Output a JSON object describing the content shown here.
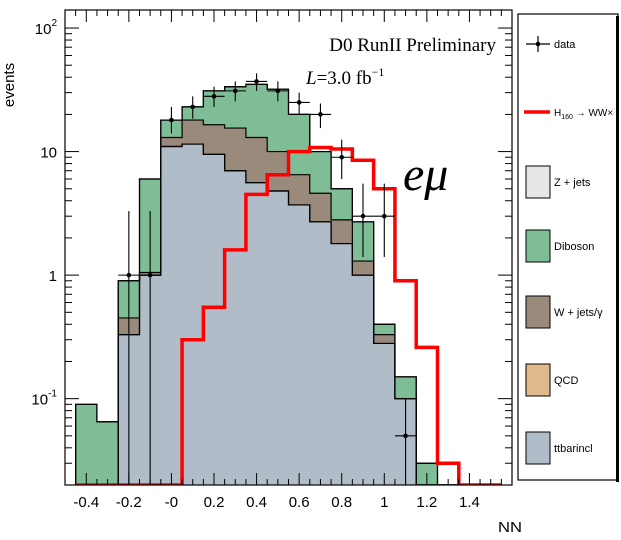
{
  "chart_data": {
    "type": "histogram",
    "title": "D0 RunII Preliminary",
    "luminosity": {
      "symbol": "L",
      "text": "=3.0 fb",
      "superscript": "−1"
    },
    "channel_label": "eμ",
    "xlabel": "NN",
    "ylabel": "events",
    "yscale": "log",
    "xlim": [
      -0.5,
      1.6
    ],
    "ylim": [
      0.02,
      140
    ],
    "grid": false,
    "legend_placement": "right-outside",
    "bin_edges": [
      -0.45,
      -0.35,
      -0.25,
      -0.15,
      -0.05,
      0.05,
      0.15,
      0.25,
      0.35,
      0.45,
      0.55,
      0.65,
      0.75,
      0.85,
      0.95,
      1.05,
      1.15,
      1.25,
      1.35,
      1.45,
      1.55
    ],
    "x_tick_values": [
      -0.4,
      -0.2,
      0,
      0.2,
      0.4,
      0.6,
      0.8,
      1,
      1.2,
      1.4
    ],
    "x_tick_labels": [
      "-0.4",
      "-0.2",
      "-0",
      "0.2",
      "0.4",
      "0.6",
      "0.8",
      "1",
      "1.2",
      "1.4"
    ],
    "y_ticks": [
      {
        "value": 0.1,
        "base": "10",
        "exp": "-1"
      },
      {
        "value": 1,
        "base": "1",
        "exp": ""
      },
      {
        "value": 10,
        "base": "10",
        "exp": ""
      },
      {
        "value": 100,
        "base": "10",
        "exp": "2"
      }
    ],
    "stack": [
      {
        "name": "ttbarincl",
        "color": "#b0bdc8",
        "values": [
          0,
          0,
          0.33,
          1.0,
          11,
          11.5,
          9.5,
          7,
          5.6,
          4.8,
          3.7,
          2.7,
          1.8,
          1.0,
          0.28,
          0.1,
          0,
          0,
          0,
          0
        ]
      },
      {
        "name": "QCD",
        "color": "#e0b98a",
        "values": [
          0,
          0,
          0.33,
          1.0,
          11,
          11.5,
          9.5,
          7,
          5.6,
          4.8,
          3.7,
          2.7,
          1.8,
          1.0,
          0.28,
          0.1,
          0,
          0,
          0,
          0
        ]
      },
      {
        "name": "W + jets/γ",
        "color": "#9a8a7c",
        "values": [
          0,
          0,
          0.45,
          1.05,
          13,
          18,
          16.5,
          15.5,
          13,
          10,
          6.5,
          4.6,
          2.8,
          1.3,
          0.33,
          0.1,
          0,
          0,
          0,
          0
        ]
      },
      {
        "name": "Diboson",
        "color": "#7fbd97",
        "values": [
          0.09,
          0.065,
          0.9,
          6,
          18,
          23,
          31,
          33.5,
          35,
          32,
          20,
          10,
          5,
          2.7,
          0.4,
          0.15,
          0.03,
          0,
          0,
          0
        ]
      },
      {
        "name": "Z + jets",
        "color": "#e6e6e6",
        "values": [
          0.09,
          0.065,
          0.9,
          6,
          18,
          23,
          31,
          33.5,
          35,
          32,
          20,
          10,
          5,
          2.7,
          0.4,
          0.15,
          0.03,
          0,
          0,
          0
        ]
      }
    ],
    "signal": {
      "name": "H",
      "name_subscript": "160",
      "name_suffix": "→ WW×",
      "color": "#ff0000",
      "values": [
        0,
        0,
        0,
        0,
        0,
        0.3,
        0.55,
        1.6,
        4.5,
        6.5,
        10,
        10.8,
        10.5,
        8.5,
        5,
        0.9,
        0.26,
        0.03,
        0.02,
        0
      ]
    },
    "data": {
      "name": "data",
      "points": [
        {
          "x": -0.2,
          "y": 1,
          "lo": 0.02,
          "hi": 3.3
        },
        {
          "x": -0.1,
          "y": 1,
          "lo": 0.02,
          "hi": 3.3
        },
        {
          "x": 0,
          "y": 18,
          "lo": 14,
          "hi": 23
        },
        {
          "x": 0.1,
          "y": 23,
          "lo": 18.5,
          "hi": 28
        },
        {
          "x": 0.2,
          "y": 28,
          "lo": 23,
          "hi": 33.5
        },
        {
          "x": 0.3,
          "y": 31,
          "lo": 25.5,
          "hi": 37
        },
        {
          "x": 0.4,
          "y": 37,
          "lo": 31,
          "hi": 43
        },
        {
          "x": 0.5,
          "y": 31,
          "lo": 25.5,
          "hi": 37
        },
        {
          "x": 0.6,
          "y": 25,
          "lo": 20,
          "hi": 30
        },
        {
          "x": 0.7,
          "y": 20,
          "lo": 15.5,
          "hi": 24.5
        },
        {
          "x": 0.8,
          "y": 9,
          "lo": 6,
          "hi": 12.5
        },
        {
          "x": 0.9,
          "y": 3,
          "lo": 1.4,
          "hi": 5.5
        },
        {
          "x": 1.0,
          "y": 3,
          "lo": 1.4,
          "hi": 5.5
        },
        {
          "x": 1.1,
          "y": 0.05,
          "lo": 0.02,
          "hi": 0.1
        }
      ]
    },
    "legend_order": [
      "data",
      "signal",
      "Z + jets",
      "Diboson",
      "W + jets/γ",
      "QCD",
      "ttbarincl"
    ]
  }
}
